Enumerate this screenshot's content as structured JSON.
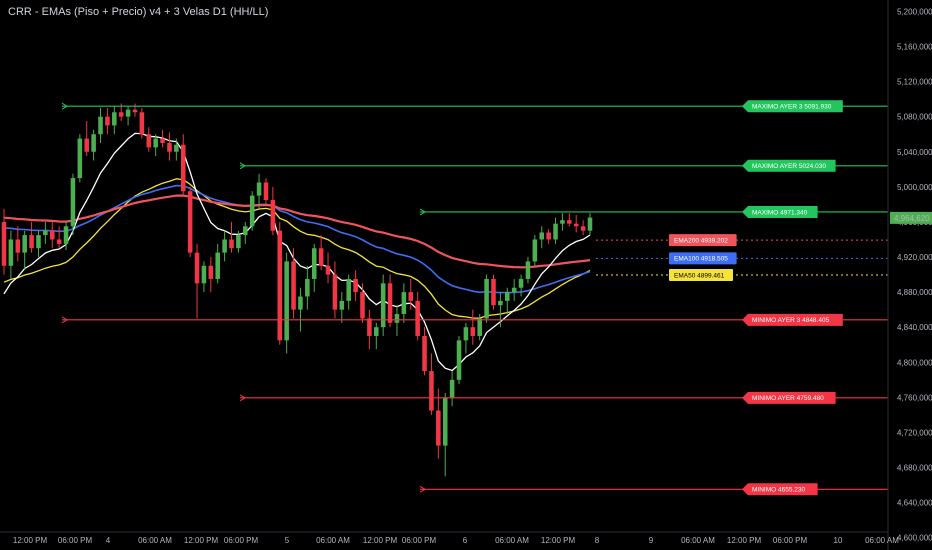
{
  "title": "CRR - EMAs (Piso + Precio) v4 + 3 Velas D1 (HH/LL)",
  "colors": {
    "background": "#000000",
    "up_candle": "#4caf50",
    "down_candle": "#f23645",
    "ema200": "#f0545d",
    "ema100": "#3d6ef5",
    "ema50": "#f5e33b",
    "ema_fast": "#ffffff",
    "high_line": "#22c55e",
    "low_line": "#f23645"
  },
  "chart_data": {
    "type": "candlestick",
    "x_tick_labels": [
      "12:00 PM",
      "06:00 PM",
      "4",
      "06:00 AM",
      "12:00 PM",
      "06:00 PM",
      "5",
      "06:00 AM",
      "12:00 PM",
      "06:00 PM",
      "6",
      "06:00 AM",
      "12:00 PM",
      "8",
      "9",
      "06:00 AM",
      "12:00 PM",
      "06:00 PM",
      "10",
      "06:00 AM"
    ],
    "y_tick_labels": [
      "5,200,000",
      "5,160,000",
      "5,120,000",
      "5,080,000",
      "5,040,000",
      "5,000,000",
      "4,960,000",
      "4,920,000",
      "4,880,000",
      "4,840,000",
      "4,800,000",
      "4,760,000",
      "4,720,000",
      "4,680,000",
      "4,640,000",
      "4,600,000"
    ],
    "ylim": [
      4586000,
      5213000
    ],
    "last_price": 4964.62,
    "last_price_label": "4,964,620",
    "levels": [
      {
        "label": "MAXIMO AYER 3  5091.930",
        "value": 5091.93,
        "kind": "high",
        "from_bar": 0
      },
      {
        "label": "MAXIMO AYER  5024.030",
        "value": 5024.03,
        "kind": "high",
        "from_bar": 1
      },
      {
        "label": "MAXIMO  4971.340",
        "value": 4971.34,
        "kind": "high",
        "from_bar": 2
      },
      {
        "label": "MINIMO AYER 3  4848.405",
        "value": 4848.405,
        "kind": "low",
        "from_bar": 0
      },
      {
        "label": "MINIMO AYER  4759.480",
        "value": 4759.48,
        "kind": "low",
        "from_bar": 1
      },
      {
        "label": "MINIMO  4655.230",
        "value": 4655.23,
        "kind": "low",
        "from_bar": 2
      }
    ],
    "ema_tags": [
      {
        "label": "EMA200  4939.202",
        "value": 4939.202,
        "color_key": "ema200"
      },
      {
        "label": "EMA100  4918.505",
        "value": 4918.505,
        "color_key": "ema100"
      },
      {
        "label": "EMA50  4899.461",
        "value": 4899.461,
        "color_key": "ema50"
      }
    ],
    "candles": [
      {
        "o": 4960,
        "h": 4975,
        "l": 4900,
        "c": 4910
      },
      {
        "o": 4910,
        "h": 4950,
        "l": 4895,
        "c": 4940
      },
      {
        "o": 4940,
        "h": 4955,
        "l": 4915,
        "c": 4925
      },
      {
        "o": 4925,
        "h": 4950,
        "l": 4905,
        "c": 4945
      },
      {
        "o": 4945,
        "h": 4960,
        "l": 4925,
        "c": 4930
      },
      {
        "o": 4930,
        "h": 4950,
        "l": 4920,
        "c": 4945
      },
      {
        "o": 4945,
        "h": 4960,
        "l": 4935,
        "c": 4950
      },
      {
        "o": 4950,
        "h": 4960,
        "l": 4930,
        "c": 4940
      },
      {
        "o": 4940,
        "h": 4955,
        "l": 4930,
        "c": 4935
      },
      {
        "o": 4935,
        "h": 4960,
        "l": 4928,
        "c": 4955
      },
      {
        "o": 4955,
        "h": 5015,
        "l": 4945,
        "c": 5010
      },
      {
        "o": 5010,
        "h": 5060,
        "l": 5005,
        "c": 5055
      },
      {
        "o": 5055,
        "h": 5075,
        "l": 5035,
        "c": 5040
      },
      {
        "o": 5040,
        "h": 5065,
        "l": 5030,
        "c": 5060
      },
      {
        "o": 5060,
        "h": 5090,
        "l": 5050,
        "c": 5080
      },
      {
        "o": 5080,
        "h": 5090,
        "l": 5060,
        "c": 5070
      },
      {
        "o": 5070,
        "h": 5092,
        "l": 5060,
        "c": 5085
      },
      {
        "o": 5085,
        "h": 5095,
        "l": 5075,
        "c": 5080
      },
      {
        "o": 5080,
        "h": 5092,
        "l": 5070,
        "c": 5088
      },
      {
        "o": 5088,
        "h": 5095,
        "l": 5080,
        "c": 5085
      },
      {
        "o": 5085,
        "h": 5090,
        "l": 5055,
        "c": 5060
      },
      {
        "o": 5060,
        "h": 5068,
        "l": 5040,
        "c": 5045
      },
      {
        "o": 5045,
        "h": 5060,
        "l": 5035,
        "c": 5055
      },
      {
        "o": 5055,
        "h": 5065,
        "l": 5045,
        "c": 5050
      },
      {
        "o": 5050,
        "h": 5062,
        "l": 5030,
        "c": 5040
      },
      {
        "o": 5040,
        "h": 5055,
        "l": 5030,
        "c": 5048
      },
      {
        "o": 5048,
        "h": 5060,
        "l": 4990,
        "c": 4995
      },
      {
        "o": 4995,
        "h": 5000,
        "l": 4920,
        "c": 4925
      },
      {
        "o": 4925,
        "h": 4935,
        "l": 4850,
        "c": 4890
      },
      {
        "o": 4890,
        "h": 4915,
        "l": 4880,
        "c": 4910
      },
      {
        "o": 4910,
        "h": 4920,
        "l": 4880,
        "c": 4895
      },
      {
        "o": 4895,
        "h": 4935,
        "l": 4890,
        "c": 4925
      },
      {
        "o": 4925,
        "h": 4950,
        "l": 4915,
        "c": 4940
      },
      {
        "o": 4940,
        "h": 4960,
        "l": 4925,
        "c": 4930
      },
      {
        "o": 4930,
        "h": 4950,
        "l": 4925,
        "c": 4945
      },
      {
        "o": 4945,
        "h": 4960,
        "l": 4935,
        "c": 4955
      },
      {
        "o": 4955,
        "h": 4995,
        "l": 4950,
        "c": 4990
      },
      {
        "o": 4990,
        "h": 5015,
        "l": 4975,
        "c": 5005
      },
      {
        "o": 5005,
        "h": 5010,
        "l": 4980,
        "c": 4985
      },
      {
        "o": 4985,
        "h": 5000,
        "l": 4945,
        "c": 4950
      },
      {
        "o": 4950,
        "h": 4960,
        "l": 4820,
        "c": 4825
      },
      {
        "o": 4825,
        "h": 4925,
        "l": 4810,
        "c": 4915
      },
      {
        "o": 4915,
        "h": 4930,
        "l": 4850,
        "c": 4860
      },
      {
        "o": 4860,
        "h": 4885,
        "l": 4835,
        "c": 4875
      },
      {
        "o": 4875,
        "h": 4910,
        "l": 4860,
        "c": 4895
      },
      {
        "o": 4895,
        "h": 4935,
        "l": 4880,
        "c": 4930
      },
      {
        "o": 4930,
        "h": 4945,
        "l": 4905,
        "c": 4910
      },
      {
        "o": 4910,
        "h": 4925,
        "l": 4890,
        "c": 4900
      },
      {
        "o": 4900,
        "h": 4915,
        "l": 4850,
        "c": 4860
      },
      {
        "o": 4860,
        "h": 4880,
        "l": 4845,
        "c": 4870
      },
      {
        "o": 4870,
        "h": 4900,
        "l": 4860,
        "c": 4895
      },
      {
        "o": 4895,
        "h": 4905,
        "l": 4870,
        "c": 4880
      },
      {
        "o": 4880,
        "h": 4890,
        "l": 4845,
        "c": 4850
      },
      {
        "o": 4850,
        "h": 4860,
        "l": 4815,
        "c": 4830
      },
      {
        "o": 4830,
        "h": 4845,
        "l": 4815,
        "c": 4840
      },
      {
        "o": 4840,
        "h": 4900,
        "l": 4830,
        "c": 4890
      },
      {
        "o": 4890,
        "h": 4900,
        "l": 4840,
        "c": 4845
      },
      {
        "o": 4845,
        "h": 4865,
        "l": 4830,
        "c": 4855
      },
      {
        "o": 4855,
        "h": 4890,
        "l": 4845,
        "c": 4880
      },
      {
        "o": 4880,
        "h": 4895,
        "l": 4860,
        "c": 4870
      },
      {
        "o": 4870,
        "h": 4880,
        "l": 4825,
        "c": 4830
      },
      {
        "o": 4830,
        "h": 4840,
        "l": 4785,
        "c": 4790
      },
      {
        "o": 4790,
        "h": 4810,
        "l": 4740,
        "c": 4745
      },
      {
        "o": 4745,
        "h": 4770,
        "l": 4690,
        "c": 4705
      },
      {
        "o": 4705,
        "h": 4765,
        "l": 4670,
        "c": 4760
      },
      {
        "o": 4760,
        "h": 4790,
        "l": 4750,
        "c": 4780
      },
      {
        "o": 4780,
        "h": 4830,
        "l": 4775,
        "c": 4825
      },
      {
        "o": 4825,
        "h": 4845,
        "l": 4810,
        "c": 4840
      },
      {
        "o": 4840,
        "h": 4860,
        "l": 4820,
        "c": 4830
      },
      {
        "o": 4830,
        "h": 4855,
        "l": 4825,
        "c": 4850
      },
      {
        "o": 4850,
        "h": 4900,
        "l": 4845,
        "c": 4895
      },
      {
        "o": 4895,
        "h": 4900,
        "l": 4860,
        "c": 4865
      },
      {
        "o": 4865,
        "h": 4880,
        "l": 4840,
        "c": 4870
      },
      {
        "o": 4870,
        "h": 4885,
        "l": 4855,
        "c": 4880
      },
      {
        "o": 4880,
        "h": 4895,
        "l": 4870,
        "c": 4885
      },
      {
        "o": 4885,
        "h": 4900,
        "l": 4875,
        "c": 4895
      },
      {
        "o": 4895,
        "h": 4920,
        "l": 4890,
        "c": 4915
      },
      {
        "o": 4915,
        "h": 4945,
        "l": 4910,
        "c": 4940
      },
      {
        "o": 4940,
        "h": 4955,
        "l": 4930,
        "c": 4948
      },
      {
        "o": 4948,
        "h": 4952,
        "l": 4935,
        "c": 4940
      },
      {
        "o": 4940,
        "h": 4965,
        "l": 4935,
        "c": 4958
      },
      {
        "o": 4958,
        "h": 4970,
        "l": 4950,
        "c": 4962
      },
      {
        "o": 4962,
        "h": 4970,
        "l": 4955,
        "c": 4958
      },
      {
        "o": 4958,
        "h": 4968,
        "l": 4948,
        "c": 4955
      },
      {
        "o": 4955,
        "h": 4962,
        "l": 4945,
        "c": 4950
      },
      {
        "o": 4950,
        "h": 4970,
        "l": 4945,
        "c": 4965
      }
    ]
  }
}
